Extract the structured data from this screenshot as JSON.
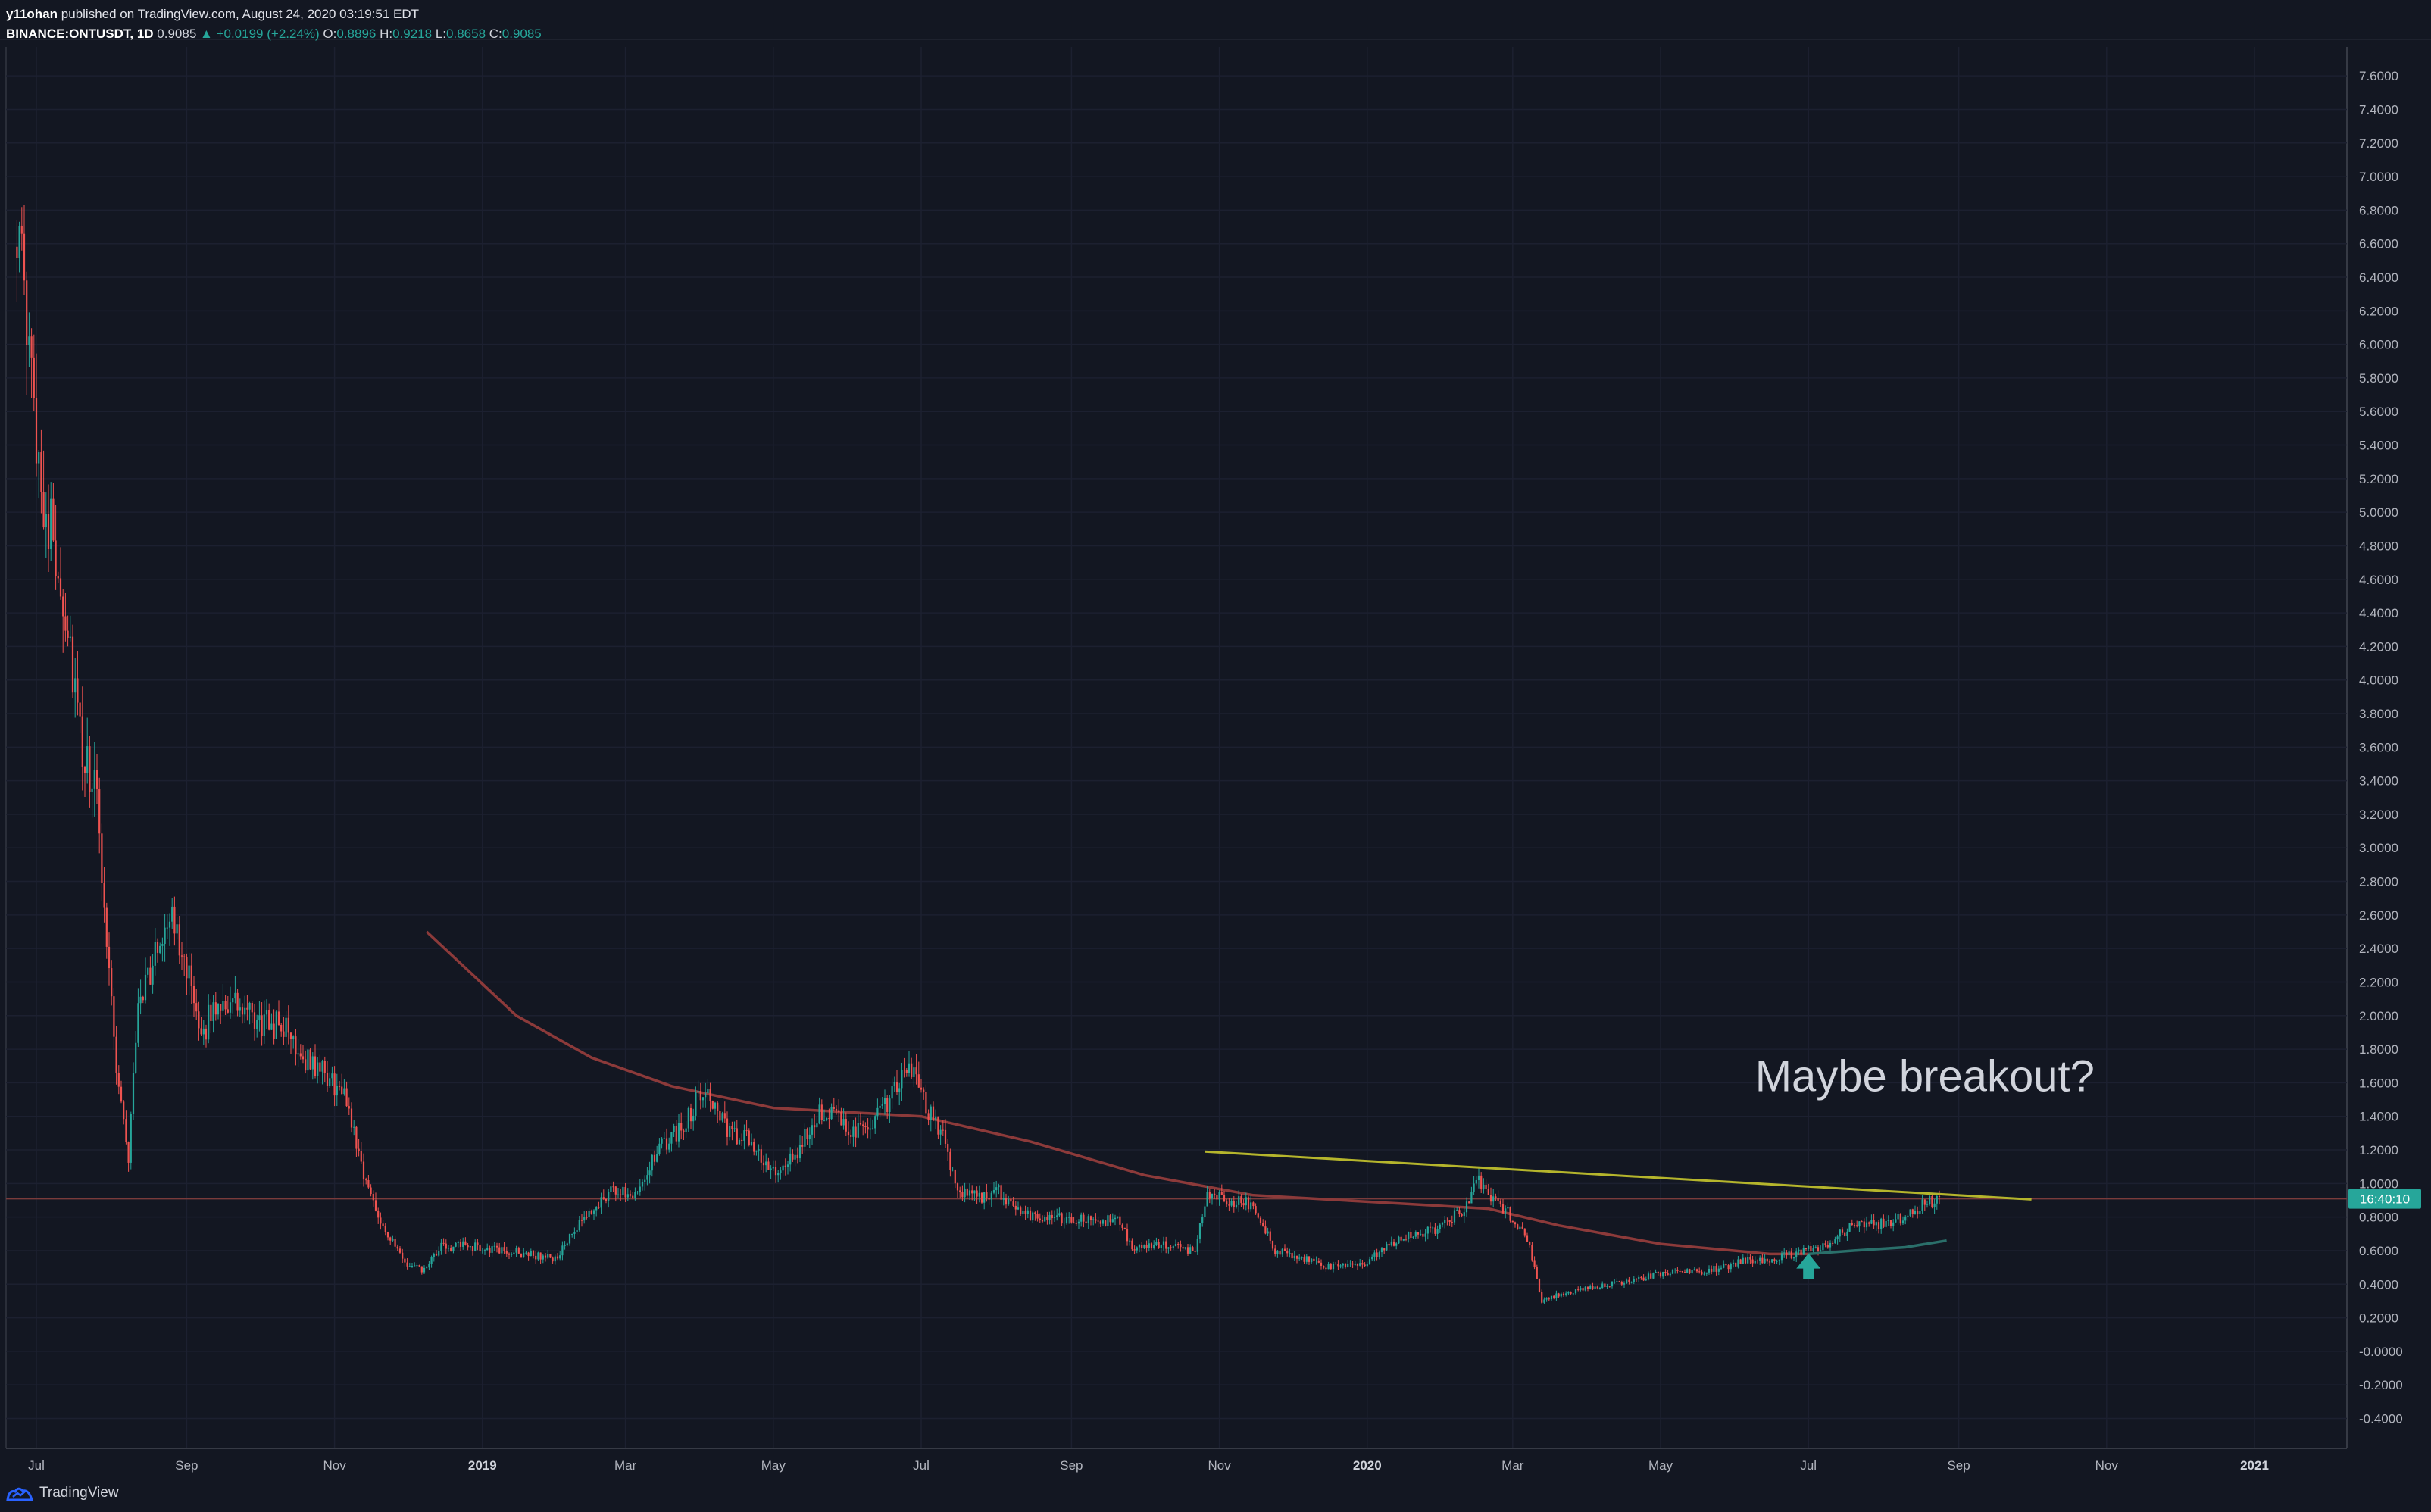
{
  "header": {
    "author": "y11ohan",
    "published": "published on TradingView.com, August 24, 2020 03:19:51 EDT",
    "symbol": "BINANCE:ONTUSDT, 1D",
    "last": "0.9085",
    "change": "▲ +0.0199 (+2.24%)",
    "o_label": "O:",
    "o_value": "0.8896",
    "h_label": "H:",
    "h_value": "0.9218",
    "l_label": "L:",
    "l_value": "0.8658",
    "c_label": "C:",
    "c_value": "0.9085"
  },
  "footer": {
    "brand": "TradingView",
    "logo_icon": "tradingview-logo-icon"
  },
  "colors": {
    "background": "#131722",
    "up": "#26a69a",
    "down": "#ef5350",
    "trendline": "#b5b52c",
    "ma200": "#8c3a3a",
    "ma50": "#2a6f6a",
    "countdown_bg": "#26a69a"
  },
  "chart_data": {
    "type": "candlestick",
    "x_ticks": [
      "Jul",
      "Sep",
      "Nov",
      "2019",
      "Mar",
      "May",
      "Jul",
      "Sep",
      "Nov",
      "2020",
      "Mar",
      "May",
      "Jul",
      "Sep",
      "Nov",
      "2021"
    ],
    "bold_ticks": [
      "2019",
      "2020",
      "2021"
    ],
    "y_ticks": [
      "7.6000",
      "7.4000",
      "7.2000",
      "7.0000",
      "6.8000",
      "6.6000",
      "6.4000",
      "6.2000",
      "6.0000",
      "5.8000",
      "5.6000",
      "5.4000",
      "5.2000",
      "5.0000",
      "4.8000",
      "4.6000",
      "4.4000",
      "4.2000",
      "4.0000",
      "3.8000",
      "3.6000",
      "3.4000",
      "3.2000",
      "3.0000",
      "2.8000",
      "2.6000",
      "2.4000",
      "2.2000",
      "2.0000",
      "1.8000",
      "1.6000",
      "1.4000",
      "1.2000",
      "1.0000",
      "0.8000",
      "0.6000",
      "0.4000",
      "0.2000",
      "-0.0000",
      "-0.2000",
      "-0.4000"
    ],
    "ylim": [
      -0.47,
      7.7
    ],
    "current_price": 0.9085,
    "countdown": "16:40:10",
    "price_path": [
      [
        "2018-06-23",
        6.8
      ],
      [
        "2018-06-26",
        6.2
      ],
      [
        "2018-06-30",
        5.6
      ],
      [
        "2018-07-05",
        5.0
      ],
      [
        "2018-07-10",
        4.7
      ],
      [
        "2018-07-15",
        4.2
      ],
      [
        "2018-07-20",
        3.5
      ],
      [
        "2018-07-25",
        3.4
      ],
      [
        "2018-07-30",
        2.5
      ],
      [
        "2018-08-03",
        1.7
      ],
      [
        "2018-08-08",
        1.15
      ],
      [
        "2018-08-12",
        2.1
      ],
      [
        "2018-08-18",
        2.3
      ],
      [
        "2018-08-24",
        2.6
      ],
      [
        "2018-08-31",
        2.4
      ],
      [
        "2018-09-06",
        1.85
      ],
      [
        "2018-09-14",
        2.1
      ],
      [
        "2018-09-22",
        2.05
      ],
      [
        "2018-09-30",
        1.95
      ],
      [
        "2018-10-10",
        1.95
      ],
      [
        "2018-10-20",
        1.75
      ],
      [
        "2018-10-28",
        1.65
      ],
      [
        "2018-11-06",
        1.5
      ],
      [
        "2018-11-14",
        1.0
      ],
      [
        "2018-11-22",
        0.72
      ],
      [
        "2018-11-30",
        0.52
      ],
      [
        "2018-12-08",
        0.48
      ],
      [
        "2018-12-15",
        0.62
      ],
      [
        "2018-12-25",
        0.63
      ],
      [
        "2019-01-08",
        0.6
      ],
      [
        "2019-01-20",
        0.58
      ],
      [
        "2019-01-31",
        0.55
      ],
      [
        "2019-02-10",
        0.75
      ],
      [
        "2019-02-22",
        0.95
      ],
      [
        "2019-03-05",
        0.95
      ],
      [
        "2019-03-15",
        1.2
      ],
      [
        "2019-03-25",
        1.35
      ],
      [
        "2019-04-03",
        1.6
      ],
      [
        "2019-04-12",
        1.3
      ],
      [
        "2019-04-22",
        1.25
      ],
      [
        "2019-05-01",
        1.05
      ],
      [
        "2019-05-10",
        1.15
      ],
      [
        "2019-05-20",
        1.45
      ],
      [
        "2019-05-30",
        1.35
      ],
      [
        "2019-06-08",
        1.3
      ],
      [
        "2019-06-18",
        1.5
      ],
      [
        "2019-06-26",
        1.7
      ],
      [
        "2019-07-03",
        1.45
      ],
      [
        "2019-07-10",
        1.3
      ],
      [
        "2019-07-16",
        0.95
      ],
      [
        "2019-07-24",
        0.92
      ],
      [
        "2019-08-02",
        0.95
      ],
      [
        "2019-08-12",
        0.82
      ],
      [
        "2019-08-24",
        0.8
      ],
      [
        "2019-09-06",
        0.78
      ],
      [
        "2019-09-20",
        0.78
      ],
      [
        "2019-09-26",
        0.62
      ],
      [
        "2019-10-10",
        0.63
      ],
      [
        "2019-10-22",
        0.6
      ],
      [
        "2019-10-27",
        0.95
      ],
      [
        "2019-11-05",
        0.9
      ],
      [
        "2019-11-15",
        0.88
      ],
      [
        "2019-11-24",
        0.6
      ],
      [
        "2019-12-05",
        0.55
      ],
      [
        "2019-12-18",
        0.5
      ],
      [
        "2020-01-01",
        0.53
      ],
      [
        "2020-01-14",
        0.68
      ],
      [
        "2020-01-28",
        0.72
      ],
      [
        "2020-02-10",
        0.85
      ],
      [
        "2020-02-15",
        1.02
      ],
      [
        "2020-02-22",
        0.9
      ],
      [
        "2020-03-01",
        0.8
      ],
      [
        "2020-03-07",
        0.68
      ],
      [
        "2020-03-13",
        0.3
      ],
      [
        "2020-03-22",
        0.35
      ],
      [
        "2020-04-05",
        0.38
      ],
      [
        "2020-04-20",
        0.43
      ],
      [
        "2020-05-05",
        0.47
      ],
      [
        "2020-05-20",
        0.48
      ],
      [
        "2020-06-05",
        0.54
      ],
      [
        "2020-06-20",
        0.56
      ],
      [
        "2020-07-01",
        0.6
      ],
      [
        "2020-07-10",
        0.65
      ],
      [
        "2020-07-20",
        0.77
      ],
      [
        "2020-07-31",
        0.76
      ],
      [
        "2020-08-10",
        0.8
      ],
      [
        "2020-08-17",
        0.88
      ],
      [
        "2020-08-24",
        0.9085
      ]
    ],
    "indicators": {
      "ma_long": [
        [
          "2018-12-09",
          2.5
        ],
        [
          "2019-01-15",
          2.0
        ],
        [
          "2019-02-15",
          1.75
        ],
        [
          "2019-03-20",
          1.58
        ],
        [
          "2019-05-01",
          1.45
        ],
        [
          "2019-07-01",
          1.4
        ],
        [
          "2019-08-15",
          1.25
        ],
        [
          "2019-10-01",
          1.05
        ],
        [
          "2019-11-15",
          0.93
        ],
        [
          "2020-01-15",
          0.88
        ],
        [
          "2020-02-20",
          0.85
        ],
        [
          "2020-03-20",
          0.75
        ],
        [
          "2020-05-01",
          0.64
        ],
        [
          "2020-06-15",
          0.58
        ],
        [
          "2020-07-01",
          0.58
        ]
      ],
      "ma_short": [
        [
          "2020-07-01",
          0.58
        ],
        [
          "2020-07-20",
          0.6
        ],
        [
          "2020-08-10",
          0.62
        ],
        [
          "2020-08-27",
          0.66
        ]
      ],
      "resistance_line": [
        [
          "2019-10-26",
          1.19
        ],
        [
          "2020-10-01",
          0.905
        ]
      ]
    },
    "annotations": [
      {
        "text": "Maybe breakout?",
        "x": "2020-08-18",
        "y": 1.55
      },
      {
        "type": "arrow-up",
        "x": "2020-07-01",
        "y": 0.43
      }
    ]
  }
}
